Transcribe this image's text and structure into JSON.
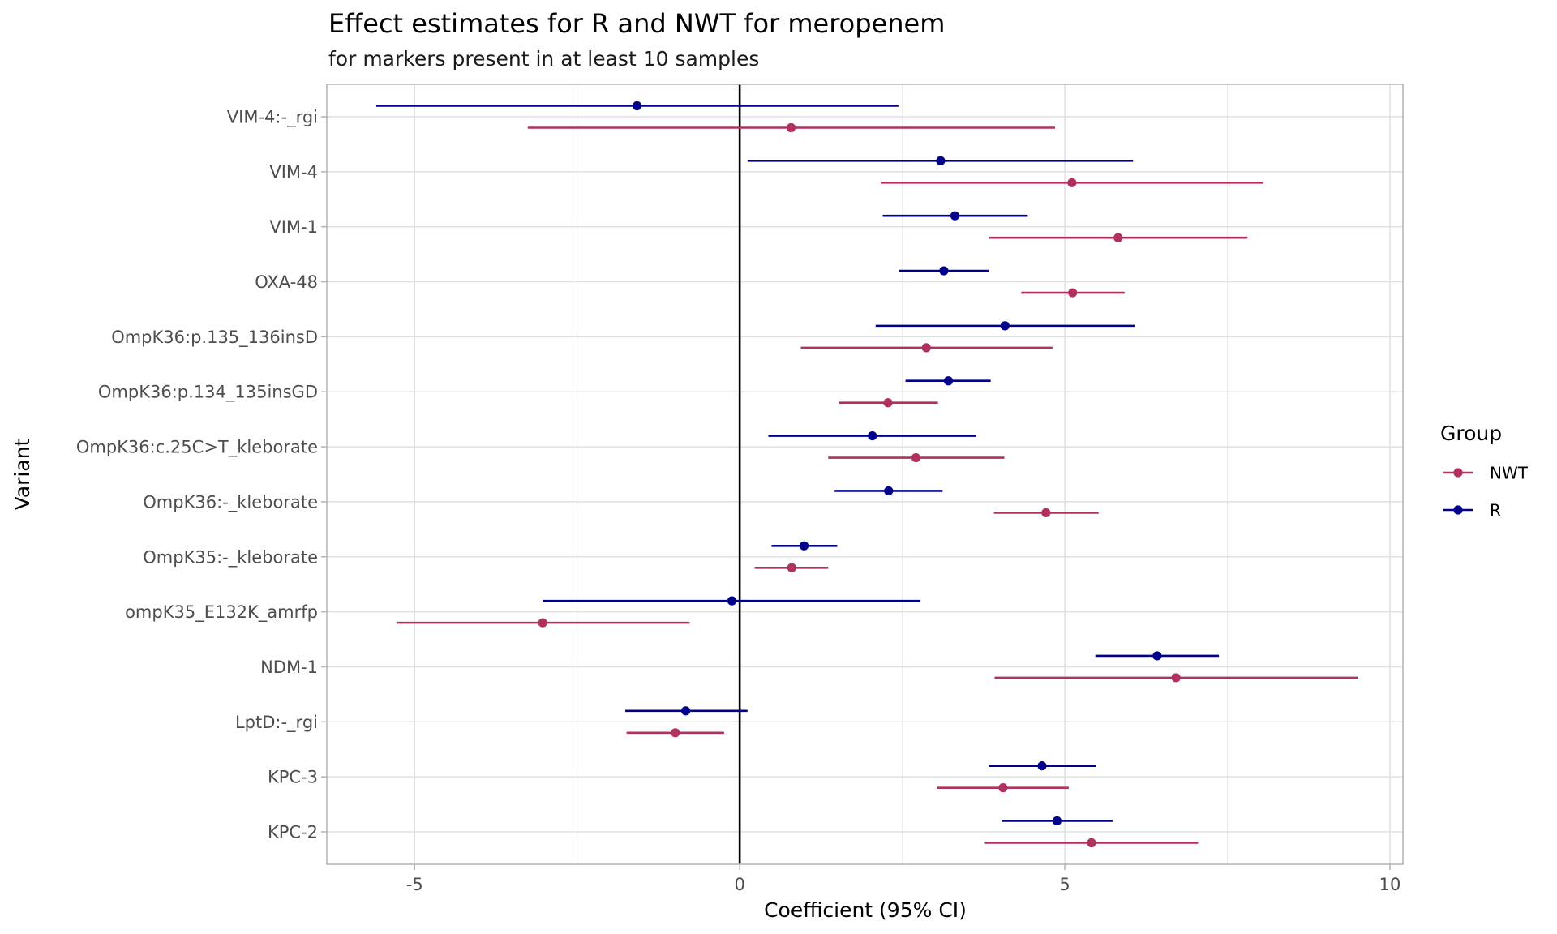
{
  "chart_data": {
    "type": "forest",
    "title": "Effect estimates for R and NWT for meropenem",
    "subtitle": "for markers present in at least 10 samples",
    "xlabel": "Coefficient (95% CI)",
    "ylabel": "Variant",
    "xlim": [
      -6.35,
      10.2
    ],
    "xticks": [
      -5,
      0,
      5,
      10
    ],
    "xtick_labels": [
      "-5",
      "0",
      "5",
      "10"
    ],
    "x_minor_grid": [
      -7.5,
      -2.5,
      2.5,
      7.5
    ],
    "reference_line_x": 0,
    "grid": true,
    "legend": {
      "title": "Group",
      "position": "right",
      "entries": [
        {
          "name": "NWT",
          "color": "#B03060"
        },
        {
          "name": "R",
          "color": "#00008B"
        }
      ]
    },
    "categories": [
      "VIM-4:-_rgi",
      "VIM-4",
      "VIM-1",
      "OXA-48",
      "OmpK36:p.135_136insD",
      "OmpK36:p.134_135insGD",
      "OmpK36:c.25C>T_kleborate",
      "OmpK36:-_kleborate",
      "OmpK35:-_kleborate",
      "ompK35_E132K_amrfp",
      "NDM-1",
      "LptD:-_rgi",
      "KPC-3",
      "KPC-2"
    ],
    "series": [
      {
        "name": "R",
        "color": "#00008B",
        "estimate": [
          -1.58,
          3.09,
          3.31,
          3.14,
          4.08,
          3.21,
          2.04,
          2.29,
          0.99,
          -0.12,
          6.42,
          -0.83,
          4.65,
          4.88
        ],
        "lower": [
          -5.59,
          0.12,
          2.2,
          2.45,
          2.09,
          2.55,
          0.44,
          1.46,
          0.49,
          -3.03,
          5.47,
          -1.76,
          3.83,
          4.03
        ],
        "upper": [
          2.44,
          6.05,
          4.43,
          3.84,
          6.08,
          3.86,
          3.64,
          3.12,
          1.5,
          2.78,
          7.37,
          0.12,
          5.48,
          5.74
        ]
      },
      {
        "name": "NWT",
        "color": "#B03060",
        "estimate": [
          0.79,
          5.11,
          5.82,
          5.12,
          2.87,
          2.28,
          2.71,
          4.71,
          0.8,
          -3.03,
          6.71,
          -0.99,
          4.05,
          5.41
        ],
        "lower": [
          -3.26,
          2.17,
          3.84,
          4.33,
          0.94,
          1.52,
          1.36,
          3.91,
          0.23,
          -5.28,
          3.92,
          -1.74,
          3.03,
          3.77
        ],
        "upper": [
          4.85,
          8.05,
          7.81,
          5.92,
          4.81,
          3.05,
          4.07,
          5.52,
          1.36,
          -0.77,
          9.51,
          -0.24,
          5.06,
          7.05
        ]
      }
    ]
  }
}
